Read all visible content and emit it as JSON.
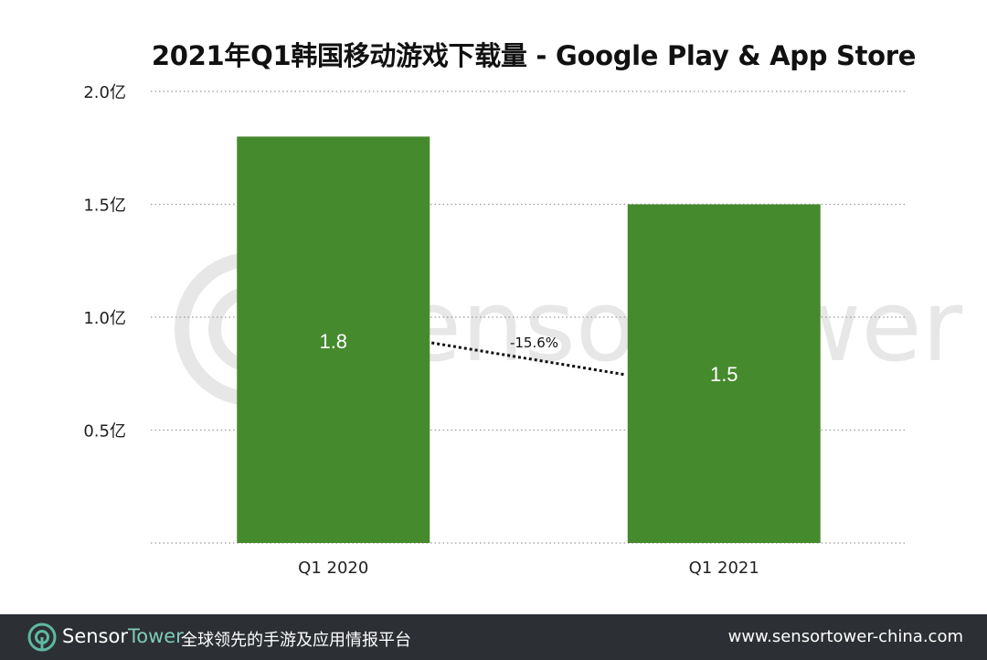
{
  "chart_data": {
    "type": "bar",
    "title": "2021年Q1韩国移动游戏下载量 - Google Play & App Store",
    "categories": [
      "Q1 2020",
      "Q1 2021"
    ],
    "values": [
      1.8,
      1.5
    ],
    "data_labels": [
      "1.8",
      "1.5"
    ],
    "y_ticks": [
      0.5,
      1.0,
      1.5,
      2.0
    ],
    "y_tick_labels": [
      "0.5亿",
      "1.0亿",
      "1.5亿",
      "2.0亿"
    ],
    "ylim": [
      0,
      2.0
    ],
    "xlabel": "",
    "ylabel": "",
    "grid": "horizontal dotted",
    "change_annotation": "-15.6%",
    "bar_color": "#468a2e"
  },
  "watermark": {
    "text": "SensorTower"
  },
  "footer": {
    "brand_part1": "Sensor",
    "brand_part2": "Tower",
    "tagline": "全球领先的手游及应用情报平台",
    "url": "www.sensortower-china.com",
    "background": "#2c2f33",
    "logo_icon": "sensor-tower-logo-icon"
  }
}
